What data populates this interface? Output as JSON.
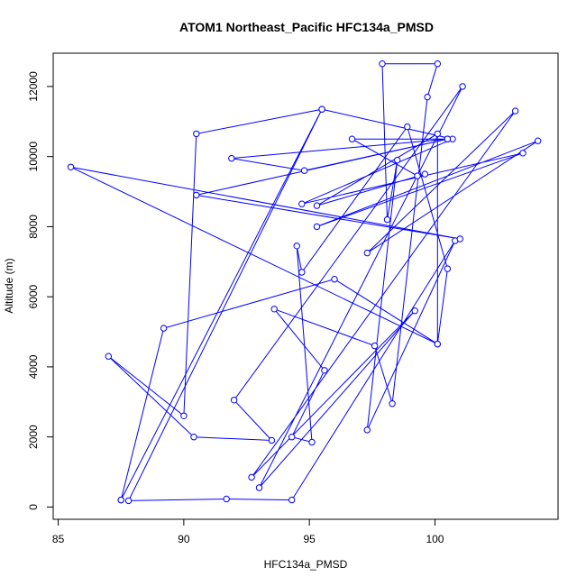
{
  "chart_data": {
    "type": "line",
    "title": "ATOM1 Northeast_Pacific HFC134a_PMSD",
    "xlabel": "HFC134a_PMSD",
    "ylabel": "Altitude (m)",
    "xlim": [
      84.8,
      104.9
    ],
    "ylim": [
      -350,
      12950
    ],
    "x_ticks": [
      85,
      90,
      95,
      100
    ],
    "y_ticks": [
      0,
      2000,
      4000,
      6000,
      8000,
      10000,
      12000
    ],
    "grid": false,
    "legend": "none",
    "series": [
      {
        "color": "#0000ff",
        "marker": "open-circle",
        "points": [
          [
            87.5,
            200
          ],
          [
            95.5,
            11350
          ],
          [
            90.5,
            10650
          ],
          [
            90.0,
            2600
          ],
          [
            87.0,
            4300
          ],
          [
            90.4,
            2000
          ],
          [
            93.5,
            1900
          ],
          [
            92.0,
            3050
          ],
          [
            101.1,
            12000
          ],
          [
            93.0,
            550
          ],
          [
            99.2,
            5600
          ],
          [
            92.7,
            850
          ],
          [
            103.2,
            11300
          ],
          [
            97.3,
            7250
          ],
          [
            104.1,
            10450
          ],
          [
            95.3,
            8000
          ],
          [
            103.5,
            10100
          ],
          [
            94.7,
            8650
          ],
          [
            100.7,
            10500
          ],
          [
            95.5,
            11350
          ],
          [
            87.8,
            180
          ],
          [
            91.7,
            230
          ],
          [
            94.3,
            200
          ],
          [
            100.8,
            7600
          ],
          [
            97.3,
            2200
          ],
          [
            98.5,
            9900
          ],
          [
            98.1,
            8200
          ],
          [
            97.9,
            12650
          ],
          [
            100.1,
            12650
          ],
          [
            99.7,
            11700
          ],
          [
            98.3,
            2950
          ],
          [
            97.6,
            4600
          ],
          [
            93.6,
            5650
          ],
          [
            95.6,
            3900
          ],
          [
            94.3,
            2000
          ],
          [
            95.1,
            1850
          ],
          [
            94.5,
            7450
          ],
          [
            94.7,
            6700
          ],
          [
            98.9,
            10850
          ],
          [
            100.5,
            6800
          ],
          [
            100.1,
            4650
          ],
          [
            100.1,
            10650
          ],
          [
            95.3,
            8600
          ],
          [
            99.6,
            9500
          ],
          [
            99.3,
            9450
          ],
          [
            96.7,
            10500
          ],
          [
            100.5,
            10500
          ],
          [
            94.8,
            9600
          ],
          [
            91.9,
            9950
          ],
          [
            100.5,
            10500
          ],
          [
            90.5,
            8900
          ],
          [
            101.0,
            7650
          ],
          [
            85.5,
            9700
          ],
          [
            100.1,
            4650
          ],
          [
            96.0,
            6500
          ],
          [
            89.2,
            5100
          ],
          [
            87.5,
            200
          ]
        ]
      }
    ]
  }
}
